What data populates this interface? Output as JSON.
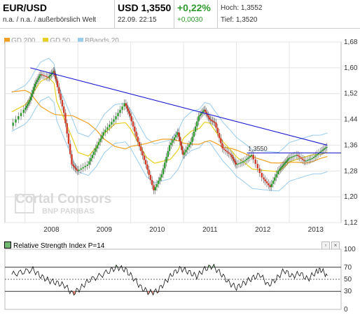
{
  "header": {
    "symbol": "EUR/USD",
    "subtitle": "n.a. / n.a. / außerbörslich Welt",
    "price": "USD 1,3550",
    "timestamp": "22.09. 22:15",
    "change_pct": "+0,22%",
    "change_abs": "+0,0030",
    "high_label": "Hoch: 1,3552",
    "low_label": "Tief: 1,3520"
  },
  "legend": [
    {
      "label": "GD 200",
      "color": "#f0a020"
    },
    {
      "label": "GD 50",
      "color": "#e8d020"
    },
    {
      "label": "BBands 20",
      "color": "#99ccee"
    }
  ],
  "watermark": {
    "line1": "Cortal Consors",
    "line2": "BNP PARIBAS"
  },
  "rsi": {
    "title": "Relative Strength Index P=14",
    "ticks": [
      "100",
      "70",
      "50",
      "30",
      "0"
    ],
    "levels": [
      30,
      50,
      70
    ]
  },
  "chart_data": {
    "type": "line",
    "x": [
      2007.75,
      2008.0,
      2008.1,
      2008.2,
      2008.3,
      2008.45,
      2008.55,
      2008.6,
      2008.75,
      2008.9,
      2009.0,
      2009.2,
      2009.35,
      2009.5,
      2009.7,
      2009.9,
      2010.0,
      2010.15,
      2010.3,
      2010.45,
      2010.6,
      2010.75,
      2010.9,
      2011.0,
      2011.15,
      2011.3,
      2011.4,
      2011.5,
      2011.6,
      2011.75,
      2011.9,
      2012.0,
      2012.15,
      2012.3,
      2012.5,
      2012.65,
      2012.8,
      2012.9,
      2013.0,
      2013.15,
      2013.3,
      2013.45,
      2013.6,
      2013.72
    ],
    "y": [
      1.42,
      1.47,
      1.5,
      1.55,
      1.58,
      1.57,
      1.59,
      1.56,
      1.46,
      1.3,
      1.28,
      1.3,
      1.35,
      1.4,
      1.44,
      1.49,
      1.45,
      1.37,
      1.3,
      1.22,
      1.27,
      1.36,
      1.4,
      1.33,
      1.37,
      1.45,
      1.47,
      1.44,
      1.43,
      1.35,
      1.33,
      1.3,
      1.31,
      1.33,
      1.26,
      1.23,
      1.28,
      1.3,
      1.32,
      1.33,
      1.31,
      1.32,
      1.34,
      1.355
    ],
    "title": "EUR/USD",
    "y_ticks": [
      "1,68",
      "1,60",
      "1,52",
      "1,44",
      "1,36",
      "1,28",
      "1,20",
      "1,12"
    ],
    "x_ticks": [
      "2008",
      "2009",
      "2010",
      "2011",
      "2012",
      "2013"
    ],
    "ylim": [
      1.12,
      1.68
    ],
    "annotations": [
      "1,3550"
    ],
    "trendline": {
      "from": [
        2008.1,
        1.6
      ],
      "to": [
        2013.72,
        1.36
      ]
    },
    "horizontal_level": 1.336,
    "rsi_x": [
      2007.75,
      2007.95,
      2008.15,
      2008.3,
      2008.45,
      2008.6,
      2008.75,
      2008.9,
      2009.05,
      2009.2,
      2009.4,
      2009.6,
      2009.75,
      2009.9,
      2010.05,
      2010.2,
      2010.35,
      2010.5,
      2010.65,
      2010.8,
      2010.95,
      2011.1,
      2011.25,
      2011.4,
      2011.55,
      2011.7,
      2011.85,
      2012.0,
      2012.15,
      2012.3,
      2012.45,
      2012.6,
      2012.75,
      2012.9,
      2013.05,
      2013.2,
      2013.35,
      2013.5,
      2013.6,
      2013.72
    ],
    "rsi_y": [
      58,
      62,
      66,
      55,
      48,
      44,
      40,
      26,
      35,
      48,
      55,
      64,
      70,
      66,
      52,
      36,
      28,
      30,
      45,
      60,
      68,
      62,
      55,
      67,
      72,
      60,
      45,
      36,
      44,
      52,
      58,
      40,
      50,
      65,
      55,
      60,
      50,
      62,
      66,
      56
    ],
    "grid": true
  }
}
